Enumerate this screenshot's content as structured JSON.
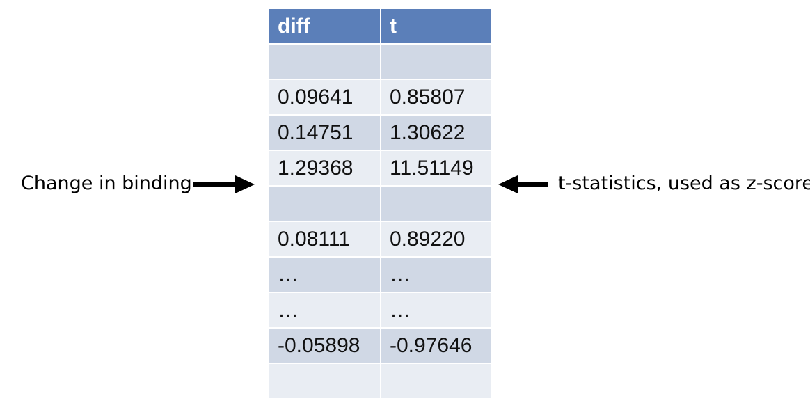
{
  "table": {
    "headers": [
      "diff",
      "t"
    ],
    "rows": [
      [
        "",
        ""
      ],
      [
        "0.09641",
        "0.85807"
      ],
      [
        "0.14751",
        "1.30622"
      ],
      [
        "1.29368",
        "11.51149"
      ],
      [
        "",
        ""
      ],
      [
        "0.08111",
        "0.89220"
      ],
      [
        "…",
        "…"
      ],
      [
        "…",
        "…"
      ],
      [
        "-0.05898",
        "-0.97646"
      ],
      [
        "",
        ""
      ]
    ]
  },
  "annotations": {
    "left_label": "Change in binding",
    "right_label": "t-statistics, used as z-score"
  },
  "colors": {
    "header_bg": "#5b7fb9",
    "row_odd": "#d0d8e5",
    "row_even": "#e9edf3"
  }
}
